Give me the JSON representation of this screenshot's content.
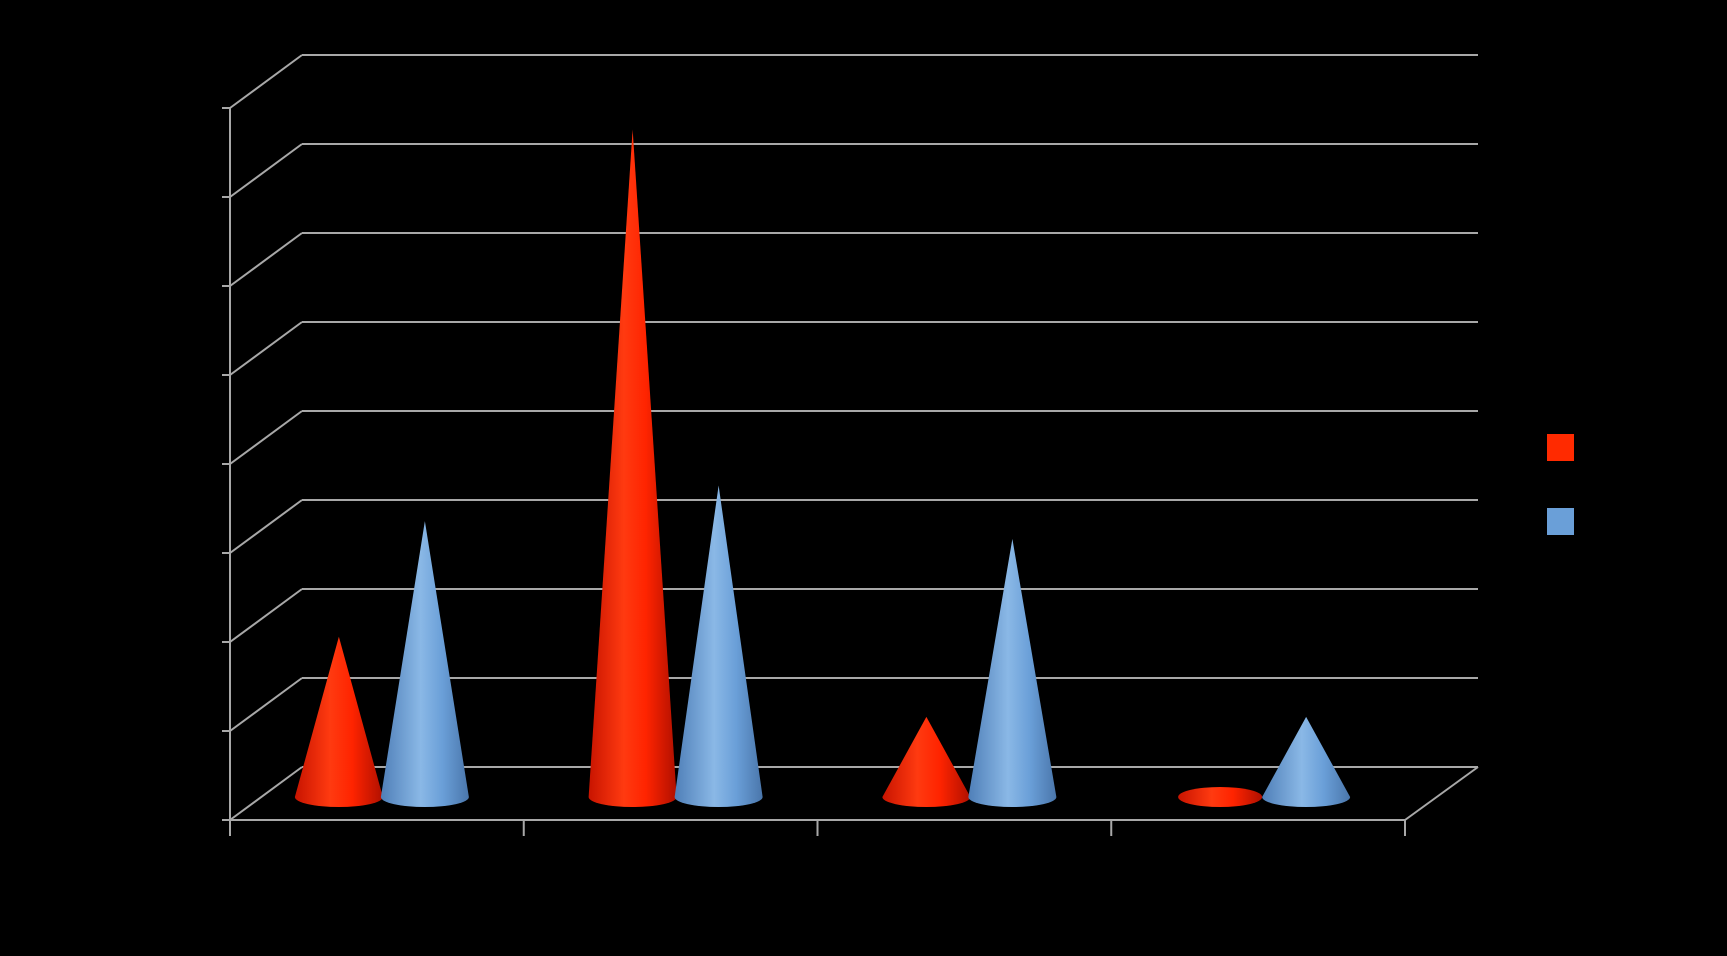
{
  "chart_data": {
    "type": "bar",
    "subtype": "3d-cone",
    "title": "",
    "xlabel": "",
    "ylabel": "",
    "categories": [
      "",
      "",
      "",
      ""
    ],
    "ylim": [
      0,
      8
    ],
    "grid": true,
    "legend_position": "right",
    "series": [
      {
        "color": "#ff2a00",
        "values": [
          1.8,
          7.5,
          0.9,
          0.0
        ]
      },
      {
        "color": "#6a9fd8",
        "values": [
          3.1,
          3.5,
          2.9,
          0.9
        ]
      }
    ]
  }
}
